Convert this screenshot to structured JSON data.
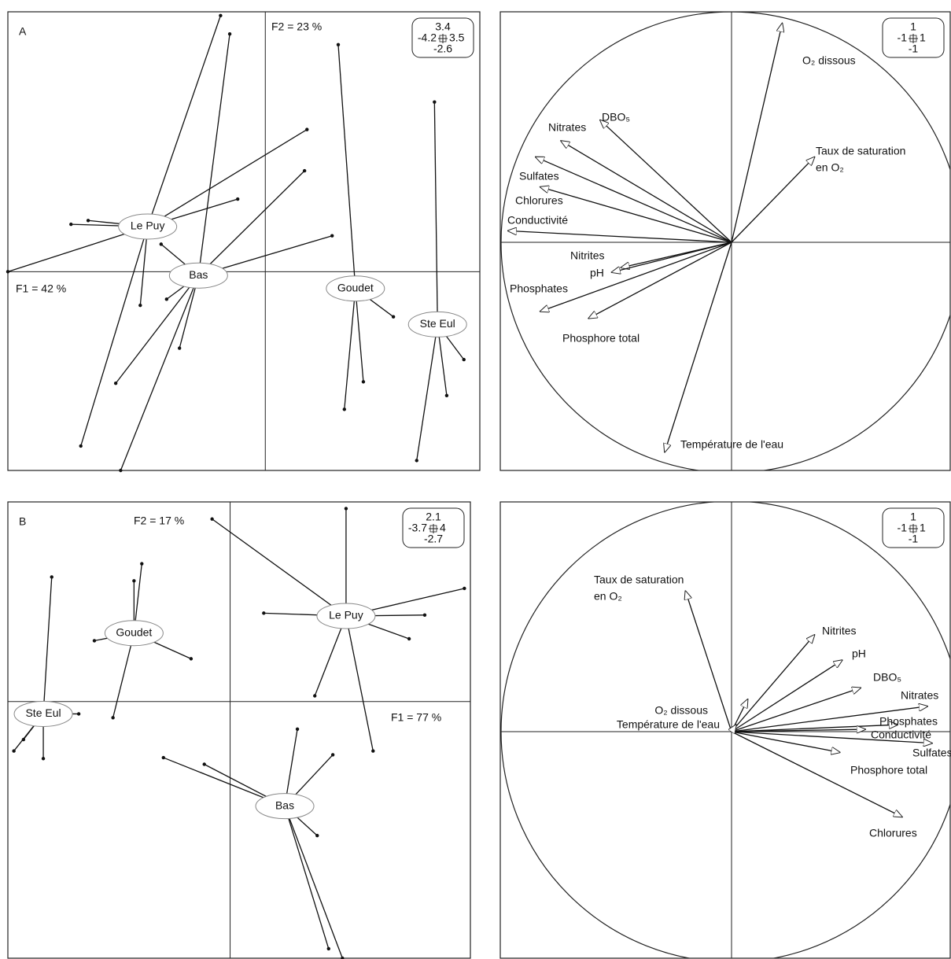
{
  "chart_data": [
    {
      "type": "star",
      "label": "A",
      "xlabel": "F1 = 42 %",
      "ylabel": "F2 = 23 %",
      "xlim": [
        -4.2,
        3.5
      ],
      "ylim": [
        -2.6,
        3.4
      ],
      "groups": [
        {
          "name": "Le Puy",
          "x": -1.92,
          "y": 0.59,
          "points": {
            "x": [
              -0.73,
              -3.17,
              -2.89,
              -0.45,
              -2.04,
              -4.2,
              -3.01,
              0.68
            ],
            "y": [
              3.35,
              0.62,
              0.67,
              0.95,
              -0.44,
              0.0,
              -2.28,
              1.86
            ]
          }
        },
        {
          "name": "Bas",
          "x": -1.09,
          "y": -0.05,
          "points": {
            "x": [
              -0.58,
              0.64,
              1.09,
              -1.7,
              -1.61,
              -1.4,
              -2.44,
              -2.36
            ],
            "y": [
              3.11,
              1.32,
              0.47,
              0.36,
              -0.36,
              -1.0,
              -1.46,
              -2.6
            ]
          }
        },
        {
          "name": "Goudet",
          "x": 1.47,
          "y": -0.22,
          "points": {
            "x": [
              1.19,
              1.29,
              1.6,
              2.09
            ],
            "y": [
              2.97,
              -1.8,
              -1.44,
              -0.59
            ]
          }
        },
        {
          "name": "Ste Eul",
          "x": 2.81,
          "y": -0.69,
          "points": {
            "x": [
              2.76,
              2.47,
              2.96,
              3.24
            ],
            "y": [
              2.22,
              -2.47,
              -1.62,
              -1.15
            ]
          }
        }
      ]
    },
    {
      "type": "circle",
      "xlim": [
        -1,
        1
      ],
      "ylim": [
        -1,
        1
      ],
      "variables": [
        {
          "name": [
            "O₂ dissous"
          ],
          "x": 0.22,
          "y": 0.95
        },
        {
          "name": [
            "Taux de saturation",
            "en O₂"
          ],
          "x": 0.36,
          "y": 0.37
        },
        {
          "name": [
            "DBO₅"
          ],
          "x": -0.57,
          "y": 0.53
        },
        {
          "name": [
            "Nitrates"
          ],
          "x": -0.74,
          "y": 0.44
        },
        {
          "name": [
            "Sulfates"
          ],
          "x": -0.85,
          "y": 0.37
        },
        {
          "name": [
            "Chlorures"
          ],
          "x": -0.83,
          "y": 0.24
        },
        {
          "name": [
            "Conductivité"
          ],
          "x": -0.97,
          "y": 0.05
        },
        {
          "name": [
            "Nitrites"
          ],
          "x": -0.48,
          "y": -0.11
        },
        {
          "name": [
            "pH"
          ],
          "x": -0.52,
          "y": -0.13
        },
        {
          "name": [
            "Phosphates"
          ],
          "x": -0.83,
          "y": -0.3
        },
        {
          "name": [
            "Phosphore total"
          ],
          "x": -0.62,
          "y": -0.33
        },
        {
          "name": [
            "Température de l'eau"
          ],
          "x": -0.29,
          "y": -0.91
        }
      ]
    },
    {
      "type": "star",
      "label": "B",
      "xlabel": "F1 = 77 %",
      "ylabel": "F2 = 17 %",
      "xlim": [
        -3.7,
        4
      ],
      "ylim": [
        -2.7,
        2.1
      ],
      "groups": [
        {
          "name": "Le Puy",
          "x": 1.93,
          "y": 0.9,
          "points": {
            "x": [
              -0.3,
              1.93,
              3.9,
              3.24,
              2.98,
              0.56,
              1.41,
              2.38
            ],
            "y": [
              1.92,
              2.03,
              1.19,
              0.91,
              0.66,
              0.93,
              0.06,
              -0.52
            ]
          }
        },
        {
          "name": "Goudet",
          "x": -1.6,
          "y": 0.72,
          "points": {
            "x": [
              -1.6,
              -1.47,
              -2.26,
              -0.65,
              -1.95
            ],
            "y": [
              1.27,
              1.45,
              0.64,
              0.45,
              -0.17
            ]
          }
        },
        {
          "name": "Ste Eul",
          "x": -3.11,
          "y": -0.13,
          "points": {
            "x": [
              -2.97,
              -2.52,
              -3.6,
              -3.11,
              -3.44
            ],
            "y": [
              1.31,
              -0.13,
              -0.52,
              -0.6,
              -0.4
            ]
          }
        },
        {
          "name": "Bas",
          "x": 0.91,
          "y": -1.1,
          "points": {
            "x": [
              -1.11,
              -0.43,
              1.12,
              1.71,
              1.45,
              1.64,
              1.87
            ],
            "y": [
              -0.59,
              -0.66,
              -0.29,
              -0.56,
              -1.41,
              -2.6,
              -2.7
            ]
          }
        }
      ]
    },
    {
      "type": "circle",
      "xlim": [
        -1,
        1
      ],
      "ylim": [
        -1,
        1
      ],
      "variables": [
        {
          "name": [
            "Taux de saturation",
            "en O₂"
          ],
          "x": -0.2,
          "y": 0.61
        },
        {
          "name": [
            "Nitrites"
          ],
          "x": 0.36,
          "y": 0.42
        },
        {
          "name": [
            "pH"
          ],
          "x": 0.48,
          "y": 0.31
        },
        {
          "name": [
            "DBO₅"
          ],
          "x": 0.56,
          "y": 0.19
        },
        {
          "name": [
            "Nitrates"
          ],
          "x": 0.85,
          "y": 0.11
        },
        {
          "name": [
            "Phosphates"
          ],
          "x": 0.72,
          "y": 0.03
        },
        {
          "name": [
            "Conductivité"
          ],
          "x": 0.58,
          "y": 0.01
        },
        {
          "name": [
            "Sulfates"
          ],
          "x": 0.87,
          "y": -0.05
        },
        {
          "name": [
            "Phosphore total"
          ],
          "x": 0.47,
          "y": -0.09
        },
        {
          "name": [
            "Chlorures"
          ],
          "x": 0.74,
          "y": -0.37
        },
        {
          "name": [
            "O₂ dissous"
          ],
          "x": 0.07,
          "y": 0.14
        },
        {
          "name": [
            "Température de l'eau"
          ],
          "x": 0.02,
          "y": 0.03
        }
      ]
    }
  ]
}
